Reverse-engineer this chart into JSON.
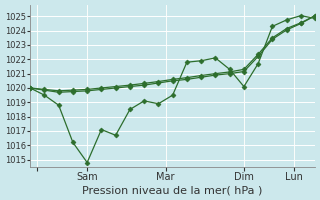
{
  "xlabel": "Pression niveau de la mer( hPa )",
  "bg_color": "#cce8ec",
  "grid_color": "#ffffff",
  "line_color": "#2d6e2d",
  "ylim": [
    1014.5,
    1025.8
  ],
  "yticks": [
    1015,
    1016,
    1017,
    1018,
    1019,
    1020,
    1021,
    1022,
    1023,
    1024,
    1025
  ],
  "xlim": [
    0,
    20
  ],
  "xtick_positions": [
    0.5,
    4,
    9.5,
    15,
    18.5
  ],
  "xtick_labels": [
    "",
    "Sam",
    "Mar",
    "Dim",
    "Lun"
  ],
  "vline_positions": [
    0.5,
    4,
    9.5,
    15,
    18.5
  ],
  "x_data": [
    0,
    1,
    2,
    3,
    4,
    5,
    6,
    7,
    8,
    9,
    10,
    11,
    12,
    13,
    14,
    15,
    16,
    17,
    18,
    19,
    20
  ],
  "y_volatile": [
    1020.0,
    1019.5,
    1018.8,
    1016.2,
    1014.8,
    1017.1,
    1016.7,
    1018.5,
    1019.1,
    1018.9,
    1019.5,
    1021.8,
    1021.9,
    1022.1,
    1021.3,
    1020.1,
    1021.7,
    1024.3,
    1024.75,
    1025.05,
    1024.85
  ],
  "y_smooth1": [
    1020.0,
    1019.85,
    1019.7,
    1019.75,
    1019.8,
    1019.9,
    1020.0,
    1020.1,
    1020.2,
    1020.35,
    1020.5,
    1020.6,
    1020.75,
    1020.9,
    1021.0,
    1021.15,
    1022.2,
    1023.4,
    1024.05,
    1024.5,
    1025.05
  ],
  "y_smooth2": [
    1020.0,
    1019.9,
    1019.8,
    1019.85,
    1019.9,
    1020.0,
    1020.1,
    1020.2,
    1020.32,
    1020.45,
    1020.6,
    1020.72,
    1020.87,
    1021.0,
    1021.12,
    1021.3,
    1022.35,
    1023.5,
    1024.15,
    1024.55,
    1025.05
  ],
  "ylabel_fontsize": 6,
  "xlabel_fontsize": 8,
  "xtick_fontsize": 7,
  "ytick_fontsize": 6
}
